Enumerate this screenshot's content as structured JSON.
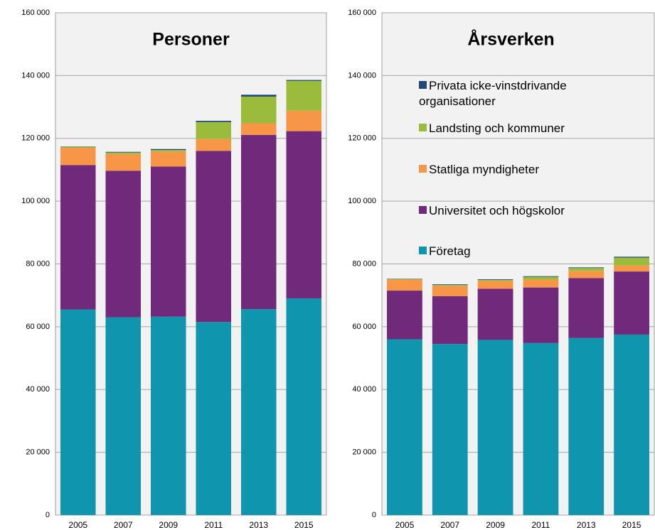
{
  "chart_data": [
    {
      "type": "bar",
      "stacked": true,
      "title": "Personer",
      "categories": [
        "2005",
        "2007",
        "2009",
        "2011",
        "2013",
        "2015"
      ],
      "series": [
        {
          "name": "Företag",
          "color": "#0f95ad",
          "values": [
            65500,
            63000,
            63200,
            61500,
            65600,
            69000
          ]
        },
        {
          "name": "Universitet och högskolor",
          "color": "#70297b",
          "values": [
            46000,
            46700,
            47800,
            54500,
            55500,
            53300
          ]
        },
        {
          "name": "Statliga myndigheter",
          "color": "#f79646",
          "values": [
            5500,
            5300,
            4800,
            3800,
            3700,
            6500
          ]
        },
        {
          "name": "Landsting och kommuner",
          "color": "#9bbb3b",
          "values": [
            300,
            500,
            500,
            5400,
            8500,
            9500
          ]
        },
        {
          "name": "Privata icke-vinstdrivande organisationer",
          "color": "#1f497d",
          "values": [
            100,
            200,
            300,
            400,
            600,
            300
          ]
        }
      ],
      "ylim": [
        0,
        160000
      ],
      "yticks": [
        {
          "value": 0,
          "label": "0"
        },
        {
          "value": 20000,
          "label": "20 000"
        },
        {
          "value": 40000,
          "label": "40 000"
        },
        {
          "value": 60000,
          "label": "60 000"
        },
        {
          "value": 80000,
          "label": "80 000"
        },
        {
          "value": 100000,
          "label": "100 000"
        },
        {
          "value": 120000,
          "label": "120 000"
        },
        {
          "value": 140000,
          "label": "140 000"
        },
        {
          "value": 160000,
          "label": "160 000"
        }
      ],
      "grid": true
    },
    {
      "type": "bar",
      "stacked": true,
      "title": "Årsverken",
      "categories": [
        "2005",
        "2007",
        "2009",
        "2011",
        "2013",
        "2015"
      ],
      "series": [
        {
          "name": "Företag",
          "color": "#0f95ad",
          "values": [
            56000,
            54500,
            55800,
            54800,
            56400,
            57500
          ]
        },
        {
          "name": "Universitet och högskolor",
          "color": "#70297b",
          "values": [
            15500,
            15200,
            16300,
            17700,
            19100,
            20100
          ]
        },
        {
          "name": "Statliga myndigheter",
          "color": "#f79646",
          "values": [
            3500,
            3300,
            2500,
            2500,
            2300,
            1900
          ]
        },
        {
          "name": "Landsting och kommuner",
          "color": "#9bbb3b",
          "values": [
            200,
            300,
            300,
            900,
            900,
            2500
          ]
        },
        {
          "name": "Privata icke-vinstdrivande organisationer",
          "color": "#1f497d",
          "values": [
            100,
            200,
            200,
            200,
            200,
            300
          ]
        }
      ],
      "ylim": [
        0,
        160000
      ],
      "yticks": [
        {
          "value": 0,
          "label": "0"
        },
        {
          "value": 20000,
          "label": "20 000"
        },
        {
          "value": 40000,
          "label": "40 000"
        },
        {
          "value": 60000,
          "label": "60 000"
        },
        {
          "value": 80000,
          "label": "80 000"
        },
        {
          "value": 100000,
          "label": "100 000"
        },
        {
          "value": 120000,
          "label": "120 000"
        },
        {
          "value": 140000,
          "label": "140 000"
        },
        {
          "value": 160000,
          "label": "160 000"
        }
      ],
      "grid": true,
      "legend": "upper-left"
    }
  ]
}
